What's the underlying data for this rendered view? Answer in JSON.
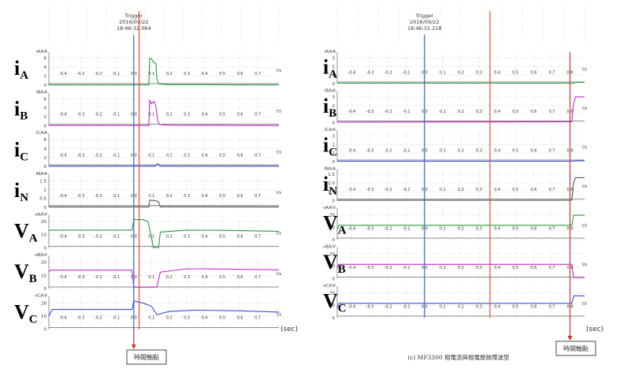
{
  "chart_data": [
    {
      "type": "line",
      "trigger": {
        "label": "Trigger",
        "date": "2016/09/22",
        "time": "18:46:32.064"
      },
      "x_ticks": [
        "-0.4",
        "-0.3",
        "-0.2",
        "-0.1",
        "0.0",
        "0.1",
        "0.2",
        "0.3",
        "0.4",
        "0.5",
        "0.6",
        "0.7"
      ],
      "xlim": [
        -0.48,
        0.82
      ],
      "x_unit": "t/s",
      "sec_label": "(sec)",
      "box_label": "時間軸點",
      "markers": {
        "blue": 0.0,
        "red": 0.03,
        "arrow": 0.0
      },
      "panels": [
        {
          "label_main": "i",
          "label_sub": "A",
          "unit": "iA/kA",
          "yticks": [
            "0",
            "2",
            "4",
            "6"
          ],
          "ylim": [
            0,
            7
          ],
          "color": "#2e9a3e",
          "points": [
            [
              -0.48,
              0.05
            ],
            [
              0.085,
              0.05
            ],
            [
              0.09,
              6.0
            ],
            [
              0.1,
              5.8
            ],
            [
              0.11,
              5.2
            ],
            [
              0.125,
              4.8
            ],
            [
              0.13,
              1.5
            ],
            [
              0.14,
              0.3
            ],
            [
              0.2,
              0.1
            ],
            [
              0.82,
              0.05
            ]
          ]
        },
        {
          "label_main": "i",
          "label_sub": "B",
          "unit": "iB/kA",
          "yticks": [
            "0",
            "2",
            "4",
            "6"
          ],
          "ylim": [
            0,
            7
          ],
          "color": "#c030c8",
          "points": [
            [
              -0.48,
              0.05
            ],
            [
              0.085,
              0.05
            ],
            [
              0.09,
              5.6
            ],
            [
              0.1,
              4.9
            ],
            [
              0.115,
              5.4
            ],
            [
              0.125,
              4.4
            ],
            [
              0.135,
              1.2
            ],
            [
              0.145,
              0.3
            ],
            [
              0.2,
              0.1
            ],
            [
              0.82,
              0.05
            ]
          ]
        },
        {
          "label_main": "i",
          "label_sub": "C",
          "unit": "iC/kA",
          "yticks": [
            "0",
            "2",
            "4",
            "6"
          ],
          "ylim": [
            0,
            7
          ],
          "color": "#3050d8",
          "points": [
            [
              -0.48,
              0.05
            ],
            [
              0.12,
              0.05
            ],
            [
              0.135,
              0.6
            ],
            [
              0.15,
              0.05
            ],
            [
              0.82,
              0.05
            ]
          ]
        },
        {
          "label_main": "i",
          "label_sub": "N",
          "unit": "iN/kA",
          "yticks": [
            "0",
            "0.5",
            "1",
            "1.5"
          ],
          "ylim": [
            0,
            1.8
          ],
          "color": "#555555",
          "points": [
            [
              -0.48,
              0.01
            ],
            [
              0.085,
              0.01
            ],
            [
              0.09,
              0.4
            ],
            [
              0.12,
              0.38
            ],
            [
              0.14,
              0.3
            ],
            [
              0.15,
              0.02
            ],
            [
              0.82,
              0.01
            ]
          ]
        },
        {
          "label_main": "V",
          "label_sub": "A",
          "unit": "vA/kV",
          "yticks": [
            "0",
            "10",
            "20"
          ],
          "ylim": [
            0,
            24
          ],
          "color": "#2e9a3e",
          "points": [
            [
              -0.48,
              13.0
            ],
            [
              -0.47,
              13.5
            ],
            [
              -0.01,
              13.5
            ],
            [
              0.0,
              21.5
            ],
            [
              0.05,
              21.5
            ],
            [
              0.08,
              20.0
            ],
            [
              0.1,
              8.0
            ],
            [
              0.11,
              0.3
            ],
            [
              0.14,
              0.3
            ],
            [
              0.15,
              12.0
            ],
            [
              0.3,
              13.5
            ],
            [
              0.5,
              13.3
            ],
            [
              0.82,
              12.6
            ]
          ]
        },
        {
          "label_main": "V",
          "label_sub": "B",
          "unit": "vB/kV",
          "yticks": [
            "0",
            "10",
            "20"
          ],
          "ylim": [
            0,
            24
          ],
          "color": "#c030c8",
          "points": [
            [
              -0.48,
              12.5
            ],
            [
              -0.47,
              14.0
            ],
            [
              -0.01,
              14.0
            ],
            [
              0.0,
              1.0
            ],
            [
              0.13,
              1.0
            ],
            [
              0.15,
              12.5
            ],
            [
              0.3,
              15.0
            ],
            [
              0.5,
              14.8
            ],
            [
              0.82,
              14.2
            ]
          ]
        },
        {
          "label_main": "V",
          "label_sub": "C",
          "unit": "vC/kV",
          "yticks": [
            "0",
            "10",
            "20"
          ],
          "ylim": [
            0,
            24
          ],
          "color": "#3050d8",
          "points": [
            [
              -0.48,
              10.0
            ],
            [
              -0.46,
              15.0
            ],
            [
              -0.01,
              15.0
            ],
            [
              0.0,
              21.5
            ],
            [
              0.05,
              20.0
            ],
            [
              0.1,
              17.5
            ],
            [
              0.13,
              11.0
            ],
            [
              0.2,
              13.5
            ],
            [
              0.35,
              14.5
            ],
            [
              0.6,
              14.0
            ],
            [
              0.82,
              13.0
            ]
          ]
        }
      ]
    },
    {
      "type": "line",
      "trigger": {
        "label": "Trigger",
        "date": "2016/09/22",
        "time": "18:46:31.218"
      },
      "x_ticks": [
        "-0.4",
        "-0.3",
        "-0.2",
        "-0.1",
        "0.0",
        "0.1",
        "0.2",
        "0.3",
        "0.4",
        "0.5",
        "0.6",
        "0.7",
        "0.8"
      ],
      "xlim": [
        -0.48,
        0.88
      ],
      "x_unit": "t/s",
      "sec_label": "(sec)",
      "box_label": "時間軸點",
      "caption": "(c) MF3300 相電流與相電壓故障波型",
      "markers": {
        "blue": 0.0,
        "red": 0.36,
        "arrow": 0.8
      },
      "panels": [
        {
          "label_main": "i",
          "label_sub": "A",
          "unit": "iA/kA",
          "yticks": [
            "0",
            "1",
            "2",
            "3"
          ],
          "ylim": [
            0,
            3.5
          ],
          "color": "#2e9a3e",
          "points": [
            [
              -0.48,
              0.05
            ],
            [
              0.82,
              0.05
            ],
            [
              0.83,
              0.15
            ],
            [
              0.88,
              0.15
            ]
          ]
        },
        {
          "label_main": "i",
          "label_sub": "B",
          "unit": "iB/kA",
          "yticks": [
            "0",
            "1",
            "2",
            "3"
          ],
          "ylim": [
            0,
            3.5
          ],
          "color": "#c030c8",
          "points": [
            [
              -0.48,
              0.05
            ],
            [
              -0.2,
              0.06
            ],
            [
              0.81,
              0.1
            ],
            [
              0.82,
              2.2
            ],
            [
              0.83,
              3.0
            ],
            [
              0.88,
              3.0
            ]
          ]
        },
        {
          "label_main": "i",
          "label_sub": "C",
          "unit": "iC/kA",
          "yticks": [
            "0",
            "1",
            "2",
            "3"
          ],
          "ylim": [
            0,
            3.5
          ],
          "color": "#3050d8",
          "points": [
            [
              -0.48,
              0.05
            ],
            [
              0.82,
              0.05
            ],
            [
              0.83,
              0.1
            ],
            [
              0.88,
              0.1
            ]
          ]
        },
        {
          "label_main": "i",
          "label_sub": "N",
          "unit": "iN/kA",
          "yticks": [
            "0",
            "0.5",
            "1.0",
            "1.5"
          ],
          "ylim": [
            0,
            1.7
          ],
          "color": "#555555",
          "points": [
            [
              -0.48,
              0.02
            ],
            [
              0.81,
              0.02
            ],
            [
              0.82,
              1.0
            ],
            [
              0.83,
              1.3
            ],
            [
              0.88,
              1.3
            ]
          ]
        },
        {
          "label_main": "V",
          "label_sub": "A",
          "unit": "vA/kV",
          "yticks": [
            "0",
            "10",
            "20"
          ],
          "ylim": [
            0,
            24
          ],
          "color": "#2e9a3e",
          "points": [
            [
              -0.48,
              8.0
            ],
            [
              -0.47,
              11.5
            ],
            [
              0.81,
              11.5
            ],
            [
              0.82,
              19.5
            ],
            [
              0.88,
              19.5
            ]
          ]
        },
        {
          "label_main": "V",
          "label_sub": "B",
          "unit": "vB/kV",
          "yticks": [
            "0",
            "10",
            "20"
          ],
          "ylim": [
            0,
            24
          ],
          "color": "#c030c8",
          "points": [
            [
              -0.48,
              8.0
            ],
            [
              -0.47,
              11.5
            ],
            [
              0.81,
              11.5
            ],
            [
              0.82,
              1.0
            ],
            [
              0.88,
              1.0
            ]
          ]
        },
        {
          "label_main": "V",
          "label_sub": "C",
          "unit": "vC/kV",
          "yticks": [
            "0",
            "10",
            "20"
          ],
          "ylim": [
            0,
            24
          ],
          "color": "#3050d8",
          "points": [
            [
              -0.48,
              8.0
            ],
            [
              -0.47,
              11.5
            ],
            [
              0.81,
              11.5
            ],
            [
              0.82,
              17.5
            ],
            [
              0.88,
              17.5
            ]
          ]
        }
      ]
    }
  ]
}
